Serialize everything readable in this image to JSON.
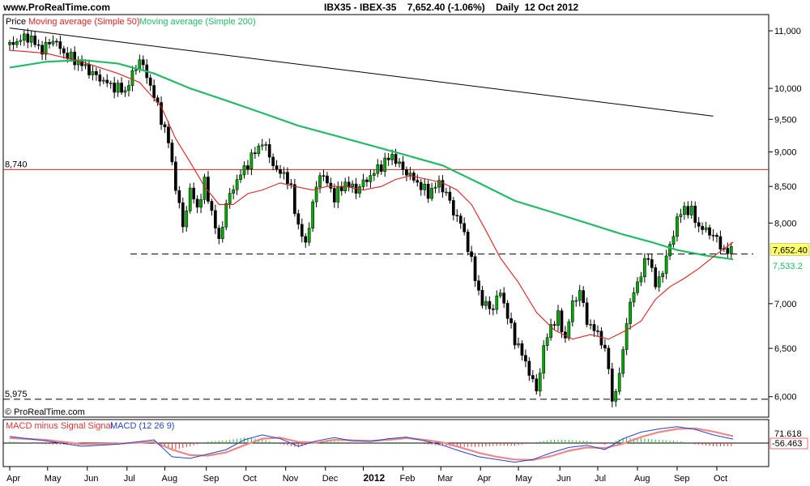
{
  "header": {
    "site": "www.ProRealTime.com",
    "title": "IBX35 - IBEX-35    7,652.40 (-1.06%)    Daily  12 Oct 2012"
  },
  "legend": {
    "price": "Price",
    "ma50": "Moving average (Simple 50)",
    "ma200": "Moving average (Simple 200)"
  },
  "macd_legend": {
    "signal_part": "MACD minus Signal Signal",
    "macd_part": "MACD (12 26 9)"
  },
  "watermark": "© ProRealTime.com",
  "colors": {
    "ma50": "#dd2222",
    "ma200": "#22bb66",
    "up": "#00aa00",
    "down": "#000000",
    "macd": "#2244cc",
    "signal": "#ee8888",
    "hist_pos": "#22bb33",
    "hist_neg": "#dd3333",
    "last_price_bg": "#ffff66",
    "horizontal_line": "#dd2222"
  },
  "chart_data": {
    "type": "candlestick",
    "instrument": "IBX35 - IBEX-35",
    "last_price": "7,652.40",
    "ma200_last": "7,533.2",
    "macd_values": [
      "71.618",
      "-56.463"
    ],
    "ylim": [
      5800,
      11300
    ],
    "y_scale": "log",
    "y_ticks": [
      "11,000",
      "10,000",
      "9,500",
      "9,000",
      "8,500",
      "8,000",
      "7,000",
      "6,500",
      "6,000"
    ],
    "y_tick_values": [
      11000,
      10000,
      9500,
      9000,
      8500,
      8000,
      7000,
      6500,
      6000
    ],
    "x_ticks": [
      "Apr",
      "May",
      "Jun",
      "Jul",
      "Aug",
      "Sep",
      "Oct",
      "Nov",
      "Dec",
      "2012",
      "Feb",
      "Mar",
      "Apr",
      "May",
      "Jun",
      "Jul",
      "Aug",
      "Sep",
      "Oct"
    ],
    "x_tick_days": [
      0,
      21,
      43,
      65,
      86,
      109,
      131,
      153,
      175,
      196,
      218,
      239,
      261,
      282,
      305,
      326,
      348,
      370,
      392
    ],
    "last_day": 401,
    "horizontal_levels": [
      {
        "label": "8,740",
        "value": 8740,
        "style": "solid"
      },
      {
        "label": "5,975",
        "value": 5975,
        "style": "dashed"
      },
      {
        "label": "",
        "value": 7600,
        "style": "dashed",
        "from_day": 40
      }
    ],
    "trendline": {
      "from": [
        0,
        11050
      ],
      "to": [
        390,
        9550
      ]
    },
    "price_path": [
      [
        0,
        10750
      ],
      [
        10,
        10900
      ],
      [
        18,
        10650
      ],
      [
        24,
        10850
      ],
      [
        30,
        10600
      ],
      [
        40,
        10400
      ],
      [
        48,
        10200
      ],
      [
        56,
        10050
      ],
      [
        64,
        9950
      ],
      [
        72,
        10500
      ],
      [
        78,
        10050
      ],
      [
        83,
        9600
      ],
      [
        88,
        9150
      ],
      [
        92,
        8500
      ],
      [
        96,
        7950
      ],
      [
        100,
        8450
      ],
      [
        104,
        8200
      ],
      [
        108,
        8550
      ],
      [
        112,
        8150
      ],
      [
        116,
        7750
      ],
      [
        120,
        8250
      ],
      [
        125,
        8550
      ],
      [
        130,
        8750
      ],
      [
        136,
        9000
      ],
      [
        140,
        9150
      ],
      [
        144,
        8950
      ],
      [
        148,
        8700
      ],
      [
        152,
        8700
      ],
      [
        156,
        8450
      ],
      [
        160,
        7950
      ],
      [
        164,
        7720
      ],
      [
        168,
        8250
      ],
      [
        172,
        8700
      ],
      [
        176,
        8550
      ],
      [
        180,
        8350
      ],
      [
        186,
        8550
      ],
      [
        192,
        8450
      ],
      [
        198,
        8600
      ],
      [
        204,
        8750
      ],
      [
        208,
        8850
      ],
      [
        212,
        8950
      ],
      [
        216,
        8800
      ],
      [
        220,
        8700
      ],
      [
        226,
        8550
      ],
      [
        232,
        8400
      ],
      [
        238,
        8550
      ],
      [
        242,
        8400
      ],
      [
        246,
        8150
      ],
      [
        250,
        8000
      ],
      [
        254,
        7700
      ],
      [
        258,
        7300
      ],
      [
        262,
        7000
      ],
      [
        268,
        6950
      ],
      [
        272,
        7150
      ],
      [
        276,
        6850
      ],
      [
        280,
        6600
      ],
      [
        286,
        6350
      ],
      [
        292,
        6050
      ],
      [
        296,
        6500
      ],
      [
        300,
        6750
      ],
      [
        304,
        6850
      ],
      [
        308,
        6600
      ],
      [
        312,
        7000
      ],
      [
        316,
        7150
      ],
      [
        320,
        6800
      ],
      [
        324,
        6700
      ],
      [
        328,
        6600
      ],
      [
        332,
        6300
      ],
      [
        334,
        5950
      ],
      [
        338,
        6200
      ],
      [
        342,
        6800
      ],
      [
        346,
        7150
      ],
      [
        350,
        7350
      ],
      [
        354,
        7600
      ],
      [
        358,
        7200
      ],
      [
        362,
        7400
      ],
      [
        366,
        7700
      ],
      [
        370,
        8050
      ],
      [
        374,
        8200
      ],
      [
        378,
        8150
      ],
      [
        382,
        7950
      ],
      [
        386,
        7900
      ],
      [
        390,
        7850
      ],
      [
        394,
        7700
      ],
      [
        398,
        7620
      ],
      [
        401,
        7652
      ]
    ],
    "ma50_path": [
      [
        0,
        10650
      ],
      [
        20,
        10600
      ],
      [
        40,
        10450
      ],
      [
        60,
        10250
      ],
      [
        72,
        10100
      ],
      [
        84,
        9700
      ],
      [
        92,
        9200
      ],
      [
        100,
        8850
      ],
      [
        108,
        8500
      ],
      [
        116,
        8250
      ],
      [
        124,
        8250
      ],
      [
        132,
        8400
      ],
      [
        140,
        8450
      ],
      [
        150,
        8550
      ],
      [
        158,
        8500
      ],
      [
        168,
        8450
      ],
      [
        176,
        8500
      ],
      [
        186,
        8500
      ],
      [
        196,
        8450
      ],
      [
        206,
        8500
      ],
      [
        214,
        8600
      ],
      [
        222,
        8650
      ],
      [
        232,
        8600
      ],
      [
        240,
        8550
      ],
      [
        248,
        8450
      ],
      [
        256,
        8250
      ],
      [
        264,
        7900
      ],
      [
        272,
        7550
      ],
      [
        282,
        7250
      ],
      [
        292,
        6900
      ],
      [
        302,
        6700
      ],
      [
        312,
        6600
      ],
      [
        322,
        6650
      ],
      [
        332,
        6600
      ],
      [
        342,
        6700
      ],
      [
        350,
        6800
      ],
      [
        358,
        7050
      ],
      [
        366,
        7200
      ],
      [
        374,
        7300
      ],
      [
        382,
        7420
      ],
      [
        392,
        7600
      ],
      [
        401,
        7750
      ]
    ],
    "ma200_path": [
      [
        0,
        10350
      ],
      [
        20,
        10450
      ],
      [
        40,
        10480
      ],
      [
        60,
        10420
      ],
      [
        80,
        10250
      ],
      [
        100,
        10000
      ],
      [
        120,
        9800
      ],
      [
        140,
        9600
      ],
      [
        160,
        9400
      ],
      [
        180,
        9250
      ],
      [
        200,
        9100
      ],
      [
        220,
        8950
      ],
      [
        240,
        8800
      ],
      [
        260,
        8550
      ],
      [
        280,
        8300
      ],
      [
        300,
        8150
      ],
      [
        320,
        8000
      ],
      [
        340,
        7850
      ],
      [
        356,
        7750
      ],
      [
        370,
        7650
      ],
      [
        386,
        7580
      ],
      [
        401,
        7533
      ]
    ],
    "macd_ylim": [
      -400,
      400
    ],
    "macd_path": [
      [
        0,
        120
      ],
      [
        20,
        40
      ],
      [
        40,
        -60
      ],
      [
        60,
        -20
      ],
      [
        80,
        60
      ],
      [
        90,
        -250
      ],
      [
        100,
        -280
      ],
      [
        110,
        -200
      ],
      [
        120,
        -120
      ],
      [
        130,
        60
      ],
      [
        140,
        150
      ],
      [
        150,
        80
      ],
      [
        160,
        -60
      ],
      [
        170,
        40
      ],
      [
        180,
        100
      ],
      [
        190,
        40
      ],
      [
        200,
        30
      ],
      [
        210,
        80
      ],
      [
        220,
        110
      ],
      [
        230,
        40
      ],
      [
        240,
        -40
      ],
      [
        250,
        -150
      ],
      [
        260,
        -250
      ],
      [
        270,
        -300
      ],
      [
        280,
        -350
      ],
      [
        290,
        -300
      ],
      [
        300,
        -180
      ],
      [
        310,
        -80
      ],
      [
        320,
        -40
      ],
      [
        330,
        -120
      ],
      [
        340,
        80
      ],
      [
        350,
        200
      ],
      [
        360,
        260
      ],
      [
        370,
        300
      ],
      [
        380,
        250
      ],
      [
        390,
        150
      ],
      [
        401,
        72
      ]
    ],
    "signal_path": [
      [
        0,
        90
      ],
      [
        20,
        60
      ],
      [
        40,
        -20
      ],
      [
        60,
        -10
      ],
      [
        80,
        20
      ],
      [
        90,
        -120
      ],
      [
        100,
        -220
      ],
      [
        110,
        -230
      ],
      [
        120,
        -170
      ],
      [
        130,
        -40
      ],
      [
        140,
        80
      ],
      [
        150,
        100
      ],
      [
        160,
        20
      ],
      [
        170,
        10
      ],
      [
        180,
        60
      ],
      [
        190,
        50
      ],
      [
        200,
        40
      ],
      [
        210,
        60
      ],
      [
        220,
        90
      ],
      [
        230,
        60
      ],
      [
        240,
        10
      ],
      [
        250,
        -80
      ],
      [
        260,
        -180
      ],
      [
        270,
        -250
      ],
      [
        280,
        -300
      ],
      [
        290,
        -310
      ],
      [
        300,
        -240
      ],
      [
        310,
        -140
      ],
      [
        320,
        -80
      ],
      [
        330,
        -90
      ],
      [
        340,
        -10
      ],
      [
        350,
        110
      ],
      [
        360,
        200
      ],
      [
        370,
        260
      ],
      [
        380,
        270
      ],
      [
        390,
        210
      ],
      [
        401,
        128
      ]
    ]
  }
}
